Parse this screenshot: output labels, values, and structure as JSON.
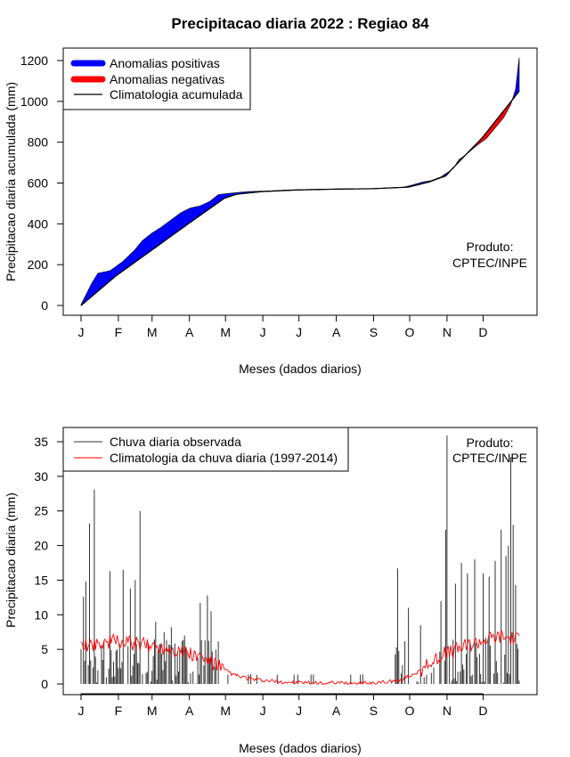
{
  "title": "Precipitacao diaria 2022 : Regiao 84",
  "chart_data": [
    {
      "type": "area",
      "name": "accumulated",
      "xlabel": "Meses (dados diarios)",
      "ylabel": "Precipitacao diaria acumulada (mm)",
      "ylim": [
        0,
        1260
      ],
      "yticks": [
        0,
        200,
        400,
        600,
        800,
        1000,
        1200
      ],
      "month_ticks": [
        "J",
        "F",
        "M",
        "A",
        "M",
        "J",
        "J",
        "A",
        "S",
        "O",
        "N",
        "D"
      ],
      "credit": [
        "Produto:",
        "CPTEC/INPE"
      ],
      "legend": {
        "positive": "Anomalias positivas",
        "negative": "Anomalias negativas",
        "climatology": "Climatologia acumulada"
      },
      "colors": {
        "positive": "#0000ff",
        "negative": "#ff0000",
        "climatology": "#000000"
      },
      "observed_anchors": [
        [
          1,
          5
        ],
        [
          10,
          110
        ],
        [
          15,
          158
        ],
        [
          25,
          170
        ],
        [
          35,
          212
        ],
        [
          45,
          268
        ],
        [
          52,
          318
        ],
        [
          60,
          355
        ],
        [
          68,
          385
        ],
        [
          76,
          420
        ],
        [
          84,
          455
        ],
        [
          92,
          478
        ],
        [
          100,
          488
        ],
        [
          108,
          510
        ],
        [
          115,
          543
        ],
        [
          122,
          548
        ],
        [
          130,
          553
        ],
        [
          140,
          558
        ],
        [
          150,
          560
        ],
        [
          160,
          562
        ],
        [
          172,
          566
        ],
        [
          185,
          568
        ],
        [
          200,
          570
        ],
        [
          220,
          571
        ],
        [
          240,
          572
        ],
        [
          255,
          575
        ],
        [
          262,
          578
        ],
        [
          268,
          578
        ],
        [
          276,
          590
        ],
        [
          285,
          605
        ],
        [
          292,
          612
        ],
        [
          300,
          630
        ],
        [
          305,
          650
        ],
        [
          310,
          670
        ],
        [
          315,
          715
        ],
        [
          322,
          745
        ],
        [
          330,
          785
        ],
        [
          338,
          820
        ],
        [
          345,
          870
        ],
        [
          352,
          920
        ],
        [
          358,
          985
        ],
        [
          362,
          1060
        ],
        [
          365,
          1215
        ]
      ],
      "climatology_anchors": [
        [
          1,
          0
        ],
        [
          30,
          145
        ],
        [
          59,
          268
        ],
        [
          90,
          400
        ],
        [
          120,
          525
        ],
        [
          130,
          545
        ],
        [
          151,
          558
        ],
        [
          181,
          566
        ],
        [
          212,
          570
        ],
        [
          243,
          572
        ],
        [
          273,
          580
        ],
        [
          290,
          605
        ],
        [
          304,
          635
        ],
        [
          311,
          680
        ],
        [
          334,
          820
        ],
        [
          365,
          1050
        ]
      ]
    },
    {
      "type": "bar",
      "name": "daily",
      "xlabel": "Meses (dados diarios)",
      "ylabel": "Precipitacao diaria (mm)",
      "ylim": [
        0,
        37
      ],
      "yticks": [
        0,
        5,
        10,
        15,
        20,
        25,
        30,
        35
      ],
      "month_ticks": [
        "J",
        "F",
        "M",
        "A",
        "M",
        "J",
        "J",
        "A",
        "S",
        "O",
        "N",
        "D"
      ],
      "credit": [
        "Produto:",
        "CPTEC/INPE"
      ],
      "legend": {
        "observed": "Chuva diaria observada",
        "climatology": "Climatologia da chuva diaria (1997-2014)"
      },
      "colors": {
        "observed": "#333333",
        "climatology": "#ff0000"
      },
      "observed_peaks": [
        [
          3,
          12.6
        ],
        [
          5,
          14.8
        ],
        [
          8,
          23.2
        ],
        [
          12,
          28.1
        ],
        [
          25,
          16.3
        ],
        [
          36,
          16.5
        ],
        [
          42,
          13.8
        ],
        [
          46,
          15
        ],
        [
          50,
          25
        ],
        [
          63,
          9
        ],
        [
          70,
          7.5
        ],
        [
          76,
          8.2
        ],
        [
          87,
          7
        ],
        [
          100,
          11.7
        ],
        [
          106,
          12.8
        ],
        [
          109,
          10.5
        ],
        [
          264,
          16.7
        ],
        [
          273,
          11
        ],
        [
          283,
          8.5
        ],
        [
          300,
          12
        ],
        [
          304,
          22.3
        ],
        [
          305,
          35.9
        ],
        [
          312,
          14.5
        ],
        [
          317,
          17.5
        ],
        [
          322,
          16
        ],
        [
          328,
          18
        ],
        [
          335,
          16
        ],
        [
          340,
          15.5
        ],
        [
          345,
          17.8
        ],
        [
          350,
          22.3
        ],
        [
          354,
          18.5
        ],
        [
          356,
          20
        ],
        [
          358,
          32.8
        ],
        [
          360,
          23
        ],
        [
          362,
          14.3
        ]
      ],
      "climatology_anchors": [
        [
          1,
          5.2
        ],
        [
          15,
          6
        ],
        [
          30,
          6.2
        ],
        [
          45,
          5.8
        ],
        [
          60,
          5.5
        ],
        [
          75,
          5.2
        ],
        [
          90,
          4.5
        ],
        [
          100,
          3.8
        ],
        [
          110,
          3.2
        ],
        [
          120,
          2
        ],
        [
          130,
          1.2
        ],
        [
          145,
          0.6
        ],
        [
          165,
          0.3
        ],
        [
          195,
          0.1
        ],
        [
          225,
          0.1
        ],
        [
          250,
          0.2
        ],
        [
          262,
          0.4
        ],
        [
          272,
          1
        ],
        [
          282,
          1.8
        ],
        [
          290,
          2.8
        ],
        [
          300,
          4.2
        ],
        [
          310,
          4.8
        ],
        [
          320,
          5.5
        ],
        [
          335,
          6.4
        ],
        [
          350,
          7
        ],
        [
          365,
          6.5
        ]
      ]
    }
  ]
}
